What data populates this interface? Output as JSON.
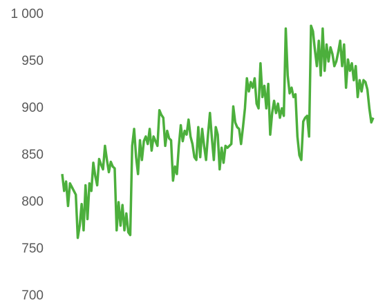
{
  "chart_data": {
    "type": "line",
    "color": "#4caf3c",
    "values": [
      830,
      812,
      822,
      796,
      820,
      816,
      812,
      808,
      762,
      775,
      798,
      770,
      818,
      782,
      820,
      812,
      842,
      828,
      818,
      846,
      840,
      835,
      860,
      845,
      832,
      843,
      838,
      836,
      770,
      800,
      775,
      797,
      770,
      788,
      768,
      765,
      860,
      878,
      848,
      830,
      866,
      845,
      865,
      870,
      862,
      878,
      855,
      870,
      865,
      860,
      898,
      893,
      890,
      860,
      876,
      868,
      866,
      823,
      838,
      830,
      860,
      882,
      865,
      876,
      872,
      888,
      870,
      862,
      848,
      845,
      880,
      848,
      878,
      860,
      845,
      872,
      895,
      868,
      845,
      880,
      872,
      835,
      858,
      842,
      860,
      858,
      860,
      862,
      902,
      885,
      880,
      878,
      862,
      880,
      900,
      932,
      918,
      928,
      922,
      932,
      905,
      900,
      948,
      912,
      924,
      900,
      926,
      872,
      895,
      908,
      895,
      905,
      890,
      900,
      892,
      985,
      935,
      916,
      922,
      912,
      915,
      870,
      850,
      845,
      886,
      890,
      892,
      870,
      988,
      982,
      962,
      945,
      972,
      935,
      985,
      940,
      968,
      950,
      965,
      958,
      945,
      950,
      960,
      972,
      945,
      968,
      922,
      952,
      940,
      948,
      930,
      945,
      912,
      930,
      918,
      930,
      928,
      920,
      900,
      885,
      890
    ],
    "ylim": [
      700,
      1000
    ],
    "yticks": [
      700,
      750,
      800,
      850,
      900,
      950,
      {
        "value": 1000,
        "label": "1 000"
      }
    ]
  }
}
